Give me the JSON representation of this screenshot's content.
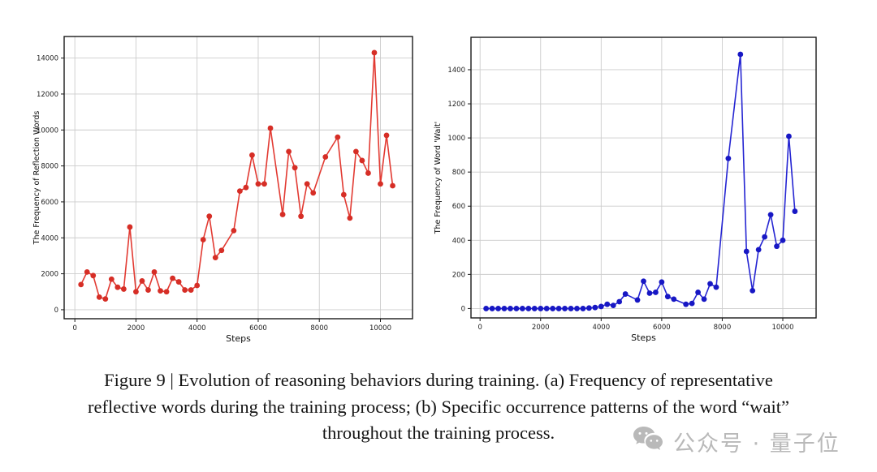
{
  "figure": {
    "caption_lines": [
      "Figure 9 | Evolution of reasoning behaviors during training. (a) Frequency of representative",
      "reflective words during the training process; (b) Specific occurrence patterns of the word “wait”",
      "throughout the training process."
    ]
  },
  "watermark": {
    "icon": "wechat-icon",
    "text": "公众号 · 量子位",
    "color": "#b9b9b9"
  },
  "chart_data": [
    {
      "type": "line",
      "panel": "a",
      "xlabel": "Steps",
      "ylabel": "The Frequency of Reflection Words",
      "line_color": "#e23a32",
      "marker_color": "#d62e26",
      "grid": true,
      "legend_position": "none",
      "xlim": [
        -350,
        11050
      ],
      "ylim": [
        -500,
        15200
      ],
      "xticks": [
        0,
        2000,
        4000,
        6000,
        8000,
        10000
      ],
      "yticks": [
        0,
        2000,
        4000,
        6000,
        8000,
        10000,
        12000,
        14000
      ],
      "x": [
        200,
        400,
        600,
        800,
        1000,
        1200,
        1400,
        1600,
        1800,
        2000,
        2200,
        2400,
        2600,
        2800,
        3000,
        3200,
        3400,
        3600,
        3800,
        4000,
        4200,
        4400,
        4600,
        4800,
        5200,
        5400,
        5600,
        5800,
        6000,
        6200,
        6400,
        6800,
        7000,
        7200,
        7400,
        7600,
        7800,
        8200,
        8600,
        8800,
        9000,
        9200,
        9400,
        9600,
        9800,
        10000,
        10200,
        10400
      ],
      "y": [
        1400,
        2100,
        1900,
        700,
        600,
        1700,
        1250,
        1150,
        4600,
        1000,
        1600,
        1100,
        2100,
        1050,
        1000,
        1750,
        1550,
        1100,
        1100,
        1350,
        3900,
        5200,
        2900,
        3300,
        4400,
        6600,
        6800,
        8600,
        7000,
        7000,
        10100,
        5300,
        8800,
        7900,
        5200,
        7000,
        6500,
        8500,
        9600,
        6400,
        5100,
        8800,
        8300,
        7600,
        14300,
        7000,
        9700,
        6900
      ]
    },
    {
      "type": "line",
      "panel": "b",
      "xlabel": "Steps",
      "ylabel": "The Frequency of Word 'Wait'",
      "line_color": "#2525d2",
      "marker_color": "#1717c4",
      "grid": true,
      "legend_position": "none",
      "xlim": [
        -300,
        11100
      ],
      "ylim": [
        -55,
        1590
      ],
      "xticks": [
        0,
        2000,
        4000,
        6000,
        8000,
        10000
      ],
      "yticks": [
        0,
        200,
        400,
        600,
        800,
        1000,
        1200,
        1400
      ],
      "x": [
        200,
        400,
        600,
        800,
        1000,
        1200,
        1400,
        1600,
        1800,
        2000,
        2200,
        2400,
        2600,
        2800,
        3000,
        3200,
        3400,
        3600,
        3800,
        4000,
        4200,
        4400,
        4600,
        4800,
        5200,
        5400,
        5600,
        5800,
        6000,
        6200,
        6400,
        6800,
        7000,
        7200,
        7400,
        7600,
        7800,
        8200,
        8600,
        8800,
        9000,
        9200,
        9400,
        9600,
        9800,
        10000,
        10200,
        10400
      ],
      "y": [
        0,
        0,
        0,
        0,
        0,
        0,
        0,
        0,
        0,
        0,
        0,
        0,
        0,
        0,
        0,
        0,
        0,
        3,
        6,
        12,
        25,
        18,
        40,
        85,
        50,
        160,
        90,
        95,
        155,
        70,
        55,
        25,
        30,
        95,
        55,
        145,
        125,
        880,
        1490,
        335,
        105,
        345,
        420,
        550,
        365,
        400,
        1010,
        570
      ]
    }
  ]
}
